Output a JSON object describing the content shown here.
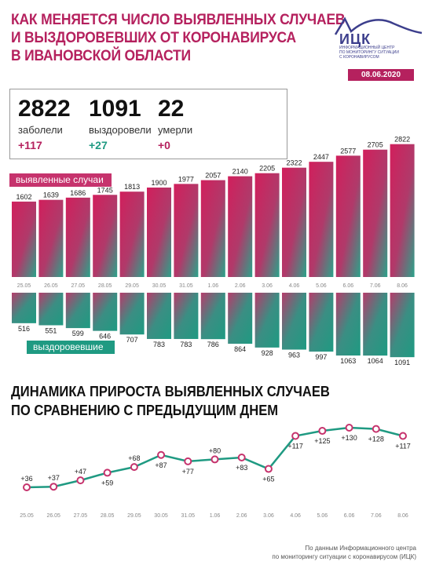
{
  "header": {
    "title_lines": [
      "КАК МЕНЯЕТСЯ ЧИСЛО ВЫЯВЛЕННЫХ СЛУЧАЕВ",
      "И ВЫЗДОРОВЕВШИХ ОТ КОРОНАВИРУСА",
      "В ИВАНОВСКОЙ ОБЛАСТИ"
    ],
    "logo_name": "ИЦК",
    "logo_sub": [
      "ИНФОРМАЦИОННЫЙ ЦЕНТР",
      "ПО МОНИТОРИНГУ СИТУАЦИИ",
      "С КОРОНАВИРУСОМ"
    ],
    "date": "08.06.2020"
  },
  "stats": [
    {
      "value": "2822",
      "label": "заболели",
      "change": "+117"
    },
    {
      "value": "1091",
      "label": "выздоровели",
      "change": "+27"
    },
    {
      "value": "22",
      "label": "умерли",
      "change": "+0"
    }
  ],
  "labels": {
    "cases": "выявленные случаи",
    "recovered": "выздоровевшие",
    "section2_lines": [
      "ДИНАМИКА ПРИРОСТА ВЫЯВЛЕННЫХ СЛУЧАЕВ",
      "ПО СРАВНЕНИЮ С ПРЕДЫДУЩИМ ДНЕМ"
    ],
    "source_lines": [
      "По данным Информационного центра",
      "по мониторингу ситуации с коронавирусом (ИЦК)"
    ]
  },
  "colors": {
    "accent": "#b5215e",
    "teal": "#1f9a82",
    "bar_top": "#c8245f",
    "bar_bottom": "#2aa38a"
  },
  "chart_data": [
    {
      "type": "bar",
      "series": [
        {
          "name": "выявленные случаи",
          "values": [
            1602,
            1639,
            1686,
            1745,
            1813,
            1900,
            1977,
            2057,
            2140,
            2205,
            2322,
            2447,
            2577,
            2705,
            2822
          ]
        }
      ],
      "categories": [
        "25.05",
        "26.05",
        "27.05",
        "28.05",
        "29.05",
        "30.05",
        "31.05",
        "1.06",
        "2.06",
        "3.06",
        "4.06",
        "5.06",
        "6.06",
        "7.06",
        "8.06"
      ]
    },
    {
      "type": "bar",
      "series": [
        {
          "name": "выздоровевшие",
          "values": [
            516,
            551,
            599,
            646,
            707,
            783,
            783,
            786,
            864,
            928,
            963,
            997,
            1063,
            1064,
            1091
          ]
        }
      ],
      "categories": [
        "25.05",
        "26.05",
        "27.05",
        "28.05",
        "29.05",
        "30.05",
        "31.05",
        "1.06",
        "2.06",
        "3.06",
        "4.06",
        "5.06",
        "6.06",
        "7.06",
        "8.06"
      ]
    },
    {
      "type": "line",
      "categories": [
        "25.05",
        "26.05",
        "27.05",
        "28.05",
        "29.05",
        "30.05",
        "31.05",
        "1.06",
        "2.06",
        "3.06",
        "4.06",
        "5.06",
        "6.06",
        "7.06",
        "8.06"
      ],
      "values": [
        36,
        37,
        47,
        59,
        68,
        87,
        77,
        80,
        83,
        65,
        117,
        125,
        130,
        128,
        117
      ],
      "labels": [
        "+36",
        "+37",
        "+47",
        "+59",
        "+68",
        "+87",
        "+77",
        "+80",
        "+83",
        "+65",
        "+117",
        "+125",
        "+130",
        "+128",
        "+117"
      ],
      "label_position": [
        "above",
        "above",
        "above",
        "below",
        "above",
        "below",
        "below",
        "above",
        "below",
        "below",
        "below",
        "below",
        "below",
        "below",
        "below"
      ]
    }
  ]
}
